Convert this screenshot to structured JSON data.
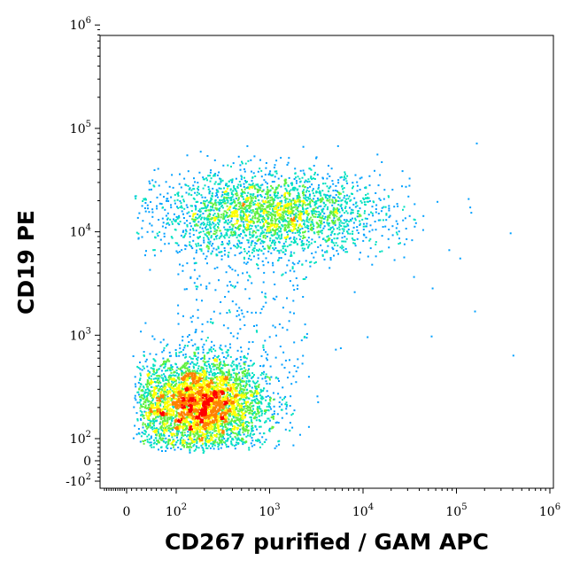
{
  "chart_data": {
    "type": "scatter",
    "style": "density-colored flow cytometry dot plot",
    "xlabel": "CD267 purified / GAM APC",
    "ylabel": "CD19 PE",
    "x_scale": "biexponential (log with linear region near zero)",
    "y_scale": "biexponential (log with linear region near zero)",
    "xlim": [
      -100,
      1000000
    ],
    "ylim": [
      -200,
      1000000
    ],
    "x_ticks": [
      {
        "label": "0",
        "value": 0
      },
      {
        "label": "10",
        "sup": "2",
        "value": 100
      },
      {
        "label": "10",
        "sup": "3",
        "value": 1000
      },
      {
        "label": "10",
        "sup": "4",
        "value": 10000
      },
      {
        "label": "10",
        "sup": "5",
        "value": 100000
      },
      {
        "label": "10",
        "sup": "6",
        "value": 1000000
      }
    ],
    "y_ticks": [
      {
        "label": "-10",
        "sup": "2",
        "value": -100
      },
      {
        "label": "0",
        "value": 0
      },
      {
        "label": "10",
        "sup": "2",
        "value": 100
      },
      {
        "label": "10",
        "sup": "3",
        "value": 1000
      },
      {
        "label": "10",
        "sup": "4",
        "value": 10000
      },
      {
        "label": "10",
        "sup": "5",
        "value": 100000
      },
      {
        "label": "10",
        "sup": "6",
        "value": 1000000
      }
    ],
    "populations": [
      {
        "center_x": 180,
        "center_y": 220,
        "spread_x_decades": 0.35,
        "spread_y_decades": 0.22,
        "count": 4200
      },
      {
        "center_x": 1000,
        "center_y": 15000,
        "spread_x_decades": 0.6,
        "spread_y_decades": 0.2,
        "count": 2600
      }
    ],
    "density_colors": [
      "#0000ff",
      "#00a0ff",
      "#00e0c0",
      "#60f040",
      "#ffff00",
      "#ff8000",
      "#ff0000"
    ],
    "grid": false,
    "legend": "none"
  }
}
